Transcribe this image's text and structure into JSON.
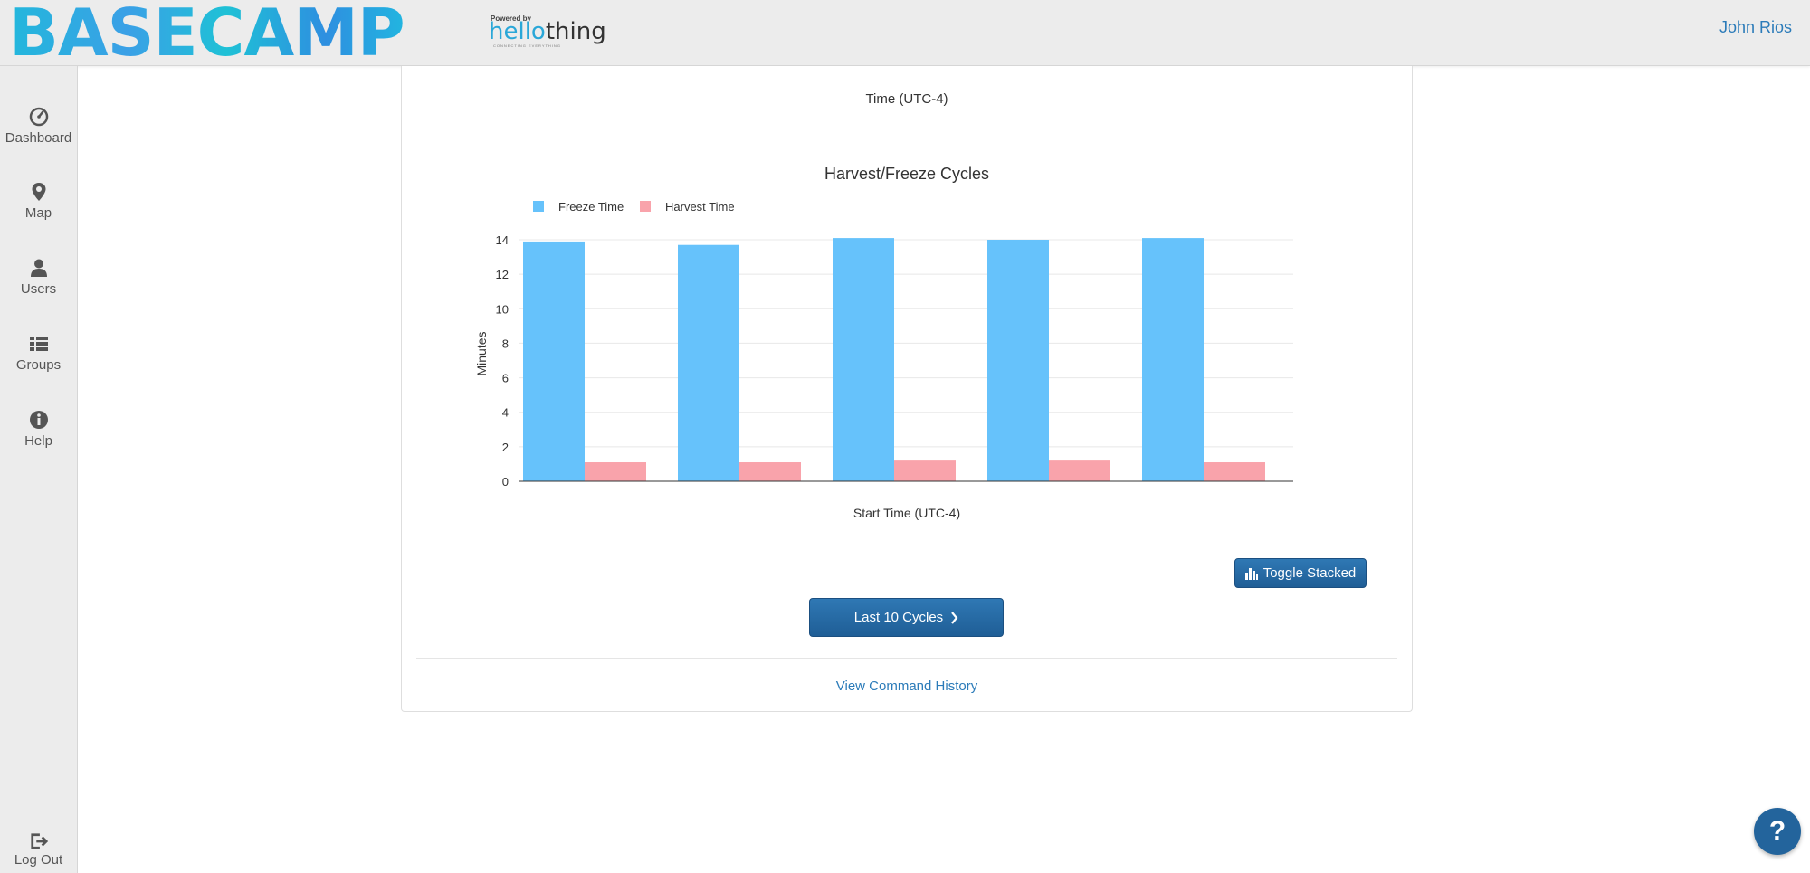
{
  "header": {
    "logo_text": "BASECAMP",
    "powered_by": "Powered by",
    "brand_part1": "hello",
    "brand_part2": "thing",
    "tagline": "CONNECTING EVERYTHING",
    "user_name": "John Rios"
  },
  "sidebar": {
    "items": [
      {
        "label": "Dashboard",
        "icon": "dashboard-icon"
      },
      {
        "label": "Map",
        "icon": "map-marker-icon"
      },
      {
        "label": "Users",
        "icon": "user-icon"
      },
      {
        "label": "Groups",
        "icon": "list-icon"
      },
      {
        "label": "Help",
        "icon": "info-icon"
      }
    ],
    "logout_label": "Log Out"
  },
  "main": {
    "time_label": "Time (UTC-4)",
    "toggle_button": "Toggle Stacked",
    "cycles_button": "Last 10 Cycles",
    "history_link": "View Command History"
  },
  "help_button": "?",
  "colors": {
    "freeze": "#66c2fb",
    "harvest": "#f9a3ab",
    "accent": "#2b7bb9",
    "button": "#23649c"
  },
  "chart_data": {
    "type": "bar",
    "title": "Harvest/Freeze Cycles",
    "xlabel": "Start Time (UTC-4)",
    "ylabel": "Minutes",
    "ylim": [
      0,
      14
    ],
    "yticks": [
      0,
      2,
      4,
      6,
      8,
      10,
      12,
      14
    ],
    "categories": [
      "",
      "",
      "",
      "",
      ""
    ],
    "series": [
      {
        "name": "Freeze Time",
        "values": [
          13.9,
          13.7,
          14.1,
          14.0,
          14.1
        ]
      },
      {
        "name": "Harvest Time",
        "values": [
          1.1,
          1.1,
          1.2,
          1.2,
          1.1
        ]
      }
    ],
    "grid": true,
    "legend": "top-left"
  }
}
